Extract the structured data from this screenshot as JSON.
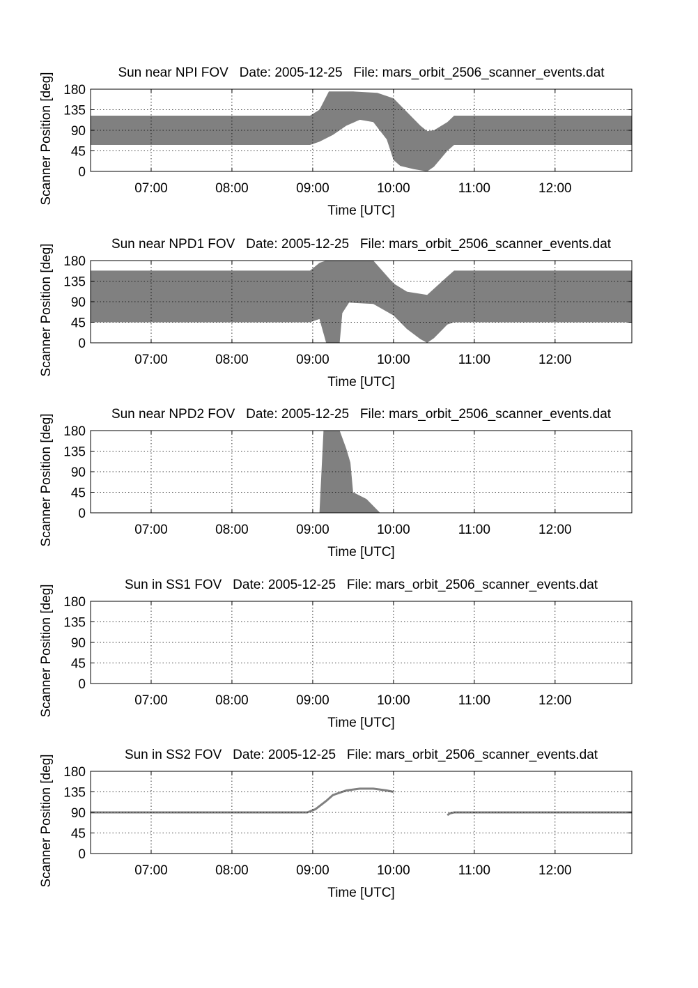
{
  "chart_data": [
    {
      "type": "area",
      "title": "Sun near NPI FOV   Date: 2005-12-25   File: mars_orbit_2506_scanner_events.dat",
      "xlabel": "Time [UTC]",
      "ylabel": "Scanner Position [deg]",
      "xlim": [
        "06:15",
        "12:57"
      ],
      "ylim": [
        0,
        180
      ],
      "xticks": [
        "07:00",
        "08:00",
        "09:00",
        "10:00",
        "11:00",
        "12:00"
      ],
      "yticks": [
        "0",
        "45",
        "90",
        "135",
        "180"
      ],
      "grid": true,
      "fill_color": "#808080",
      "regions": [
        {
          "upper": [
            [
              "06:15",
              122
            ],
            [
              "08:58",
              122
            ],
            [
              "09:05",
              135
            ],
            [
              "09:12",
              175
            ],
            [
              "09:30",
              175
            ],
            [
              "09:48",
              172
            ],
            [
              "10:00",
              160
            ],
            [
              "10:10",
              130
            ],
            [
              "10:20",
              100
            ],
            [
              "10:25",
              88
            ],
            [
              "10:30",
              90
            ],
            [
              "10:40",
              108
            ],
            [
              "10:45",
              122
            ],
            [
              "12:57",
              122
            ]
          ],
          "lower": [
            [
              "06:15",
              58
            ],
            [
              "08:58",
              58
            ],
            [
              "09:05",
              65
            ],
            [
              "09:15",
              80
            ],
            [
              "09:25",
              100
            ],
            [
              "09:35",
              113
            ],
            [
              "09:45",
              108
            ],
            [
              "09:55",
              70
            ],
            [
              "10:00",
              25
            ],
            [
              "10:05",
              12
            ],
            [
              "10:15",
              5
            ],
            [
              "10:25",
              0
            ],
            [
              "10:30",
              10
            ],
            [
              "10:40",
              45
            ],
            [
              "10:45",
              58
            ],
            [
              "12:57",
              58
            ]
          ]
        }
      ]
    },
    {
      "type": "area",
      "title": "Sun near NPD1 FOV   Date: 2005-12-25   File: mars_orbit_2506_scanner_events.dat",
      "xlabel": "Time [UTC]",
      "ylabel": "Scanner Position [deg]",
      "xlim": [
        "06:15",
        "12:57"
      ],
      "ylim": [
        0,
        180
      ],
      "xticks": [
        "07:00",
        "08:00",
        "09:00",
        "10:00",
        "11:00",
        "12:00"
      ],
      "yticks": [
        "0",
        "45",
        "90",
        "135",
        "180"
      ],
      "grid": true,
      "fill_color": "#808080",
      "regions": [
        {
          "upper": [
            [
              "06:15",
              158
            ],
            [
              "08:58",
              158
            ],
            [
              "09:05",
              175
            ],
            [
              "09:10",
              180
            ],
            [
              "09:45",
              180
            ],
            [
              "10:00",
              130
            ],
            [
              "10:10",
              112
            ],
            [
              "10:25",
              105
            ],
            [
              "10:40",
              145
            ],
            [
              "10:45",
              158
            ],
            [
              "12:57",
              158
            ]
          ],
          "lower": [
            [
              "06:15",
              45
            ],
            [
              "08:58",
              45
            ],
            [
              "09:05",
              52
            ],
            [
              "09:10",
              0
            ],
            [
              "09:20",
              0
            ],
            [
              "09:22",
              65
            ],
            [
              "09:27",
              88
            ],
            [
              "09:45",
              85
            ],
            [
              "10:00",
              60
            ],
            [
              "10:10",
              30
            ],
            [
              "10:20",
              8
            ],
            [
              "10:25",
              0
            ],
            [
              "10:30",
              10
            ],
            [
              "10:40",
              40
            ],
            [
              "10:45",
              45
            ],
            [
              "12:57",
              45
            ]
          ]
        }
      ]
    },
    {
      "type": "area",
      "title": "Sun near NPD2 FOV   Date: 2005-12-25   File: mars_orbit_2506_scanner_events.dat",
      "xlabel": "Time [UTC]",
      "ylabel": "Scanner Position [deg]",
      "xlim": [
        "06:15",
        "12:57"
      ],
      "ylim": [
        0,
        180
      ],
      "xticks": [
        "07:00",
        "08:00",
        "09:00",
        "10:00",
        "11:00",
        "12:00"
      ],
      "yticks": [
        "0",
        "45",
        "90",
        "135",
        "180"
      ],
      "grid": true,
      "fill_color": "#808080",
      "regions": [
        {
          "upper": [
            [
              "09:05",
              0
            ],
            [
              "09:08",
              180
            ],
            [
              "09:20",
              180
            ],
            [
              "09:25",
              140
            ],
            [
              "09:28",
              110
            ],
            [
              "09:30",
              45
            ],
            [
              "09:40",
              30
            ],
            [
              "09:50",
              0
            ]
          ],
          "lower": [
            [
              "09:05",
              0
            ],
            [
              "09:50",
              0
            ]
          ]
        }
      ]
    },
    {
      "type": "area",
      "title": "Sun in SS1 FOV   Date: 2005-12-25   File: mars_orbit_2506_scanner_events.dat",
      "xlabel": "Time [UTC]",
      "ylabel": "Scanner Position [deg]",
      "xlim": [
        "06:15",
        "12:57"
      ],
      "ylim": [
        0,
        180
      ],
      "xticks": [
        "07:00",
        "08:00",
        "09:00",
        "10:00",
        "11:00",
        "12:00"
      ],
      "yticks": [
        "0",
        "45",
        "90",
        "135",
        "180"
      ],
      "grid": true,
      "fill_color": "#808080",
      "regions": []
    },
    {
      "type": "line",
      "title": "Sun in SS2 FOV   Date: 2005-12-25   File: mars_orbit_2506_scanner_events.dat",
      "xlabel": "Time [UTC]",
      "ylabel": "Scanner Position [deg]",
      "xlim": [
        "06:15",
        "12:57"
      ],
      "ylim": [
        0,
        180
      ],
      "xticks": [
        "07:00",
        "08:00",
        "09:00",
        "10:00",
        "11:00",
        "12:00"
      ],
      "yticks": [
        "0",
        "45",
        "90",
        "135",
        "180"
      ],
      "grid": true,
      "line_color": "#808080",
      "series": [
        {
          "points": [
            [
              "06:15",
              90
            ],
            [
              "08:56",
              90
            ],
            [
              "09:02",
              97
            ],
            [
              "09:10",
              115
            ],
            [
              "09:15",
              128
            ],
            [
              "09:25",
              138
            ],
            [
              "09:35",
              142
            ],
            [
              "09:45",
              142
            ],
            [
              "09:55",
              138
            ],
            [
              "10:00",
              135
            ]
          ]
        },
        {
          "points": [
            [
              "10:40",
              84
            ],
            [
              "10:42",
              88
            ],
            [
              "10:45",
              90
            ],
            [
              "12:57",
              90
            ]
          ]
        }
      ]
    }
  ]
}
